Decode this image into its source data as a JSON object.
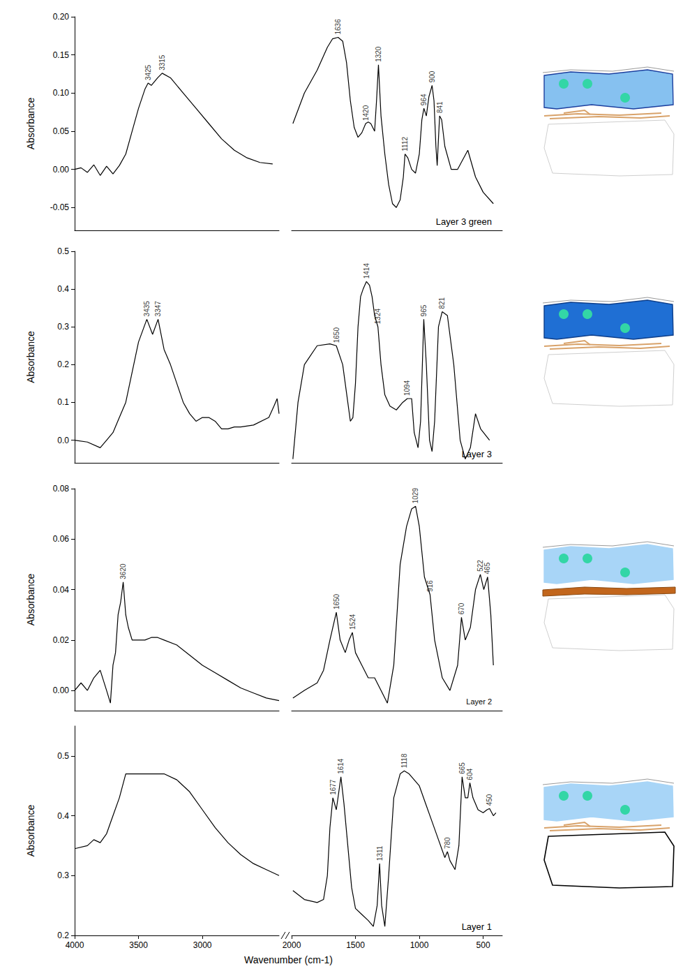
{
  "chart_data": [
    {
      "type": "line",
      "title": "Layer 3 green",
      "y_label": "Absorbance",
      "color": "#000000",
      "grid": false,
      "tick_labels": "y",
      "xlim": [
        [
          4000,
          2400
        ],
        [
          2000,
          350
        ]
      ],
      "ylim": [
        -0.08,
        0.2
      ],
      "yticks": [
        -0.05,
        {
          "value": 0,
          "label": "0.00"
        },
        0.05,
        {
          "value": 0.1,
          "label": "0.10"
        },
        0.15,
        {
          "value": 0.2,
          "label": "0.20"
        }
      ],
      "x": [
        4000,
        3950,
        3900,
        3850,
        3800,
        3750,
        3700,
        3650,
        3600,
        3550,
        3500,
        3450,
        3425,
        3400,
        3350,
        3315,
        3250,
        3150,
        3050,
        2950,
        2850,
        2750,
        2650,
        2550,
        2450,
        1990,
        1900,
        1800,
        1720,
        1680,
        1636,
        1600,
        1570,
        1540,
        1510,
        1480,
        1450,
        1420,
        1400,
        1380,
        1350,
        1335,
        1320,
        1300,
        1270,
        1240,
        1210,
        1180,
        1150,
        1125,
        1112,
        1090,
        1060,
        1030,
        1000,
        980,
        964,
        945,
        925,
        900,
        885,
        870,
        860,
        850,
        841,
        825,
        800,
        750,
        700,
        620,
        560,
        500,
        420
      ],
      "values": [
        0.0,
        0.002,
        -0.004,
        0.006,
        -0.008,
        0.004,
        -0.006,
        0.005,
        0.02,
        0.05,
        0.08,
        0.105,
        0.113,
        0.11,
        0.12,
        0.126,
        0.12,
        0.1,
        0.08,
        0.06,
        0.04,
        0.025,
        0.015,
        0.009,
        0.007,
        0.06,
        0.1,
        0.13,
        0.16,
        0.171,
        0.173,
        0.168,
        0.14,
        0.09,
        0.055,
        0.042,
        0.048,
        0.06,
        0.062,
        0.06,
        0.05,
        0.09,
        0.137,
        0.07,
        0.02,
        -0.02,
        -0.045,
        -0.05,
        -0.04,
        -0.01,
        0.02,
        0.015,
        0.0,
        -0.005,
        0.02,
        0.065,
        0.08,
        0.07,
        0.095,
        0.11,
        0.09,
        0.03,
        0.005,
        0.04,
        0.07,
        0.065,
        0.03,
        0.0,
        0.0,
        0.025,
        -0.01,
        -0.03,
        -0.045
      ],
      "annotations": [
        {
          "x": 3425,
          "text": "3425"
        },
        {
          "x": 3315,
          "text": "3315"
        },
        {
          "x": 1636,
          "text": "1636"
        },
        {
          "x": 1420,
          "text": "1420"
        },
        {
          "x": 1320,
          "text": "1320"
        },
        {
          "x": 1112,
          "text": "1112"
        },
        {
          "x": 964,
          "text": "964"
        },
        {
          "x": 900,
          "text": "900"
        },
        {
          "x": 841,
          "text": "841"
        }
      ]
    },
    {
      "type": "line",
      "title": "Layer 3",
      "y_label": "Absorbance",
      "color": "#000000",
      "grid": false,
      "tick_labels": "y",
      "xlim": [
        [
          4000,
          2400
        ],
        [
          2000,
          350
        ]
      ],
      "ylim": [
        -0.06,
        0.5
      ],
      "yticks": [
        {
          "value": 0,
          "label": "0.0"
        },
        0.1,
        0.2,
        0.3,
        0.4,
        0.5
      ],
      "x": [
        4000,
        3900,
        3800,
        3750,
        3700,
        3650,
        3600,
        3550,
        3500,
        3435,
        3390,
        3347,
        3300,
        3250,
        3200,
        3150,
        3100,
        3050,
        3000,
        2950,
        2900,
        2850,
        2800,
        2750,
        2700,
        2600,
        2480,
        2440,
        2415,
        2400,
        1990,
        1950,
        1900,
        1800,
        1700,
        1650,
        1600,
        1560,
        1540,
        1520,
        1500,
        1480,
        1460,
        1440,
        1414,
        1390,
        1370,
        1350,
        1324,
        1300,
        1270,
        1230,
        1180,
        1130,
        1094,
        1060,
        1040,
        1010,
        990,
        965,
        945,
        920,
        900,
        880,
        850,
        821,
        780,
        730,
        680,
        640,
        600,
        560,
        520,
        450
      ],
      "values": [
        0.0,
        -0.005,
        -0.02,
        0.0,
        0.02,
        0.06,
        0.1,
        0.18,
        0.26,
        0.32,
        0.28,
        0.32,
        0.24,
        0.2,
        0.15,
        0.1,
        0.07,
        0.05,
        0.06,
        0.06,
        0.05,
        0.03,
        0.03,
        0.035,
        0.035,
        0.04,
        0.06,
        0.09,
        0.11,
        0.07,
        -0.05,
        0.1,
        0.2,
        0.25,
        0.255,
        0.25,
        0.2,
        0.1,
        0.05,
        0.06,
        0.15,
        0.3,
        0.38,
        0.4,
        0.42,
        0.41,
        0.38,
        0.33,
        0.3,
        0.2,
        0.12,
        0.09,
        0.08,
        0.1,
        0.11,
        0.11,
        0.02,
        -0.02,
        0.05,
        0.32,
        0.2,
        0.0,
        -0.03,
        0.05,
        0.3,
        0.34,
        0.33,
        0.2,
        0.0,
        -0.05,
        -0.02,
        0.07,
        0.03,
        0.0
      ],
      "annotations": [
        {
          "x": 3435,
          "text": "3435"
        },
        {
          "x": 3347,
          "text": "3347"
        },
        {
          "x": 1650,
          "text": "1650"
        },
        {
          "x": 1414,
          "text": "1414"
        },
        {
          "x": 1324,
          "text": "1324"
        },
        {
          "x": 1094,
          "text": "1094"
        },
        {
          "x": 965,
          "text": "965"
        },
        {
          "x": 821,
          "text": "821"
        }
      ]
    },
    {
      "type": "line",
      "title": "Layer 2",
      "y_label": "Absorbance",
      "color": "#000000",
      "grid": false,
      "tick_labels": "y",
      "xlim": [
        [
          4000,
          2400
        ],
        [
          2000,
          350
        ]
      ],
      "ylim": [
        -0.008,
        0.08
      ],
      "yticks": [
        {
          "value": 0,
          "label": "0.00"
        },
        0.02,
        0.04,
        0.06,
        0.08
      ],
      "x": [
        4000,
        3950,
        3900,
        3850,
        3800,
        3750,
        3720,
        3700,
        3680,
        3660,
        3640,
        3620,
        3600,
        3580,
        3550,
        3500,
        3450,
        3400,
        3350,
        3300,
        3200,
        3100,
        3000,
        2900,
        2800,
        2700,
        2600,
        2500,
        2400,
        1990,
        1900,
        1800,
        1750,
        1700,
        1650,
        1620,
        1580,
        1550,
        1524,
        1500,
        1450,
        1400,
        1350,
        1300,
        1250,
        1200,
        1150,
        1100,
        1060,
        1029,
        1000,
        960,
        916,
        880,
        820,
        760,
        700,
        670,
        640,
        600,
        560,
        522,
        495,
        465,
        440,
        420
      ],
      "values": [
        0.0,
        0.003,
        0.0,
        0.005,
        0.008,
        0.0,
        -0.005,
        0.01,
        0.015,
        0.03,
        0.035,
        0.043,
        0.03,
        0.025,
        0.02,
        0.02,
        0.02,
        0.021,
        0.021,
        0.02,
        0.018,
        0.014,
        0.01,
        0.007,
        0.004,
        0.001,
        -0.001,
        -0.003,
        -0.004,
        -0.003,
        0.0,
        0.003,
        0.008,
        0.02,
        0.031,
        0.02,
        0.015,
        0.02,
        0.023,
        0.015,
        0.01,
        0.005,
        0.005,
        0.0,
        -0.005,
        0.01,
        0.05,
        0.065,
        0.072,
        0.073,
        0.065,
        0.045,
        0.038,
        0.02,
        0.005,
        0.0,
        0.01,
        0.029,
        0.02,
        0.025,
        0.04,
        0.046,
        0.04,
        0.045,
        0.03,
        0.01
      ],
      "annotations": [
        {
          "x": 3620,
          "text": "3620"
        },
        {
          "x": 1650,
          "text": "1650"
        },
        {
          "x": 1524,
          "text": "1524"
        },
        {
          "x": 1029,
          "text": "1029"
        },
        {
          "x": 916,
          "text": "916"
        },
        {
          "x": 670,
          "text": "670"
        },
        {
          "x": 522,
          "text": "522"
        },
        {
          "x": 465,
          "text": "465"
        }
      ]
    },
    {
      "type": "line",
      "title": "Layer 1",
      "y_label": "Absorbance",
      "x_label": "Wavenumber (cm-1)",
      "color": "#000000",
      "grid": false,
      "xlim": [
        [
          4000,
          2400
        ],
        [
          2000,
          350
        ]
      ],
      "xticks": [
        [
          4000,
          3500,
          3000
        ],
        [
          2000,
          1500,
          1000,
          500
        ]
      ],
      "ylim": [
        0.2,
        0.55
      ],
      "yticks": [
        0.2,
        0.3,
        0.4,
        0.5
      ],
      "x": [
        4000,
        3900,
        3850,
        3800,
        3750,
        3700,
        3650,
        3600,
        3500,
        3400,
        3300,
        3200,
        3100,
        3000,
        2900,
        2800,
        2700,
        2600,
        2500,
        2400,
        1990,
        1900,
        1800,
        1750,
        1720,
        1700,
        1677,
        1650,
        1614,
        1590,
        1560,
        1530,
        1500,
        1450,
        1400,
        1360,
        1330,
        1311,
        1295,
        1270,
        1240,
        1200,
        1150,
        1118,
        1080,
        1000,
        950,
        900,
        850,
        800,
        780,
        760,
        720,
        690,
        665,
        640,
        620,
        604,
        580,
        540,
        500,
        470,
        450,
        420,
        400
      ],
      "values": [
        0.345,
        0.35,
        0.36,
        0.355,
        0.37,
        0.4,
        0.43,
        0.47,
        0.47,
        0.47,
        0.47,
        0.46,
        0.44,
        0.41,
        0.38,
        0.355,
        0.335,
        0.32,
        0.31,
        0.3,
        0.275,
        0.26,
        0.255,
        0.26,
        0.3,
        0.38,
        0.43,
        0.41,
        0.465,
        0.42,
        0.35,
        0.28,
        0.245,
        0.235,
        0.225,
        0.215,
        0.25,
        0.32,
        0.25,
        0.215,
        0.3,
        0.43,
        0.47,
        0.475,
        0.47,
        0.45,
        0.42,
        0.39,
        0.36,
        0.33,
        0.34,
        0.325,
        0.31,
        0.35,
        0.465,
        0.43,
        0.43,
        0.455,
        0.43,
        0.41,
        0.405,
        0.41,
        0.412,
        0.4,
        0.405
      ],
      "annotations": [
        {
          "x": 1677,
          "text": "1677"
        },
        {
          "x": 1614,
          "text": "1614"
        },
        {
          "x": 1311,
          "text": "1311"
        },
        {
          "x": 1118,
          "text": "1118"
        },
        {
          "x": 780,
          "text": "780"
        },
        {
          "x": 665,
          "text": "665"
        },
        {
          "x": 604,
          "text": "604"
        },
        {
          "x": 450,
          "text": "450"
        }
      ]
    }
  ]
}
